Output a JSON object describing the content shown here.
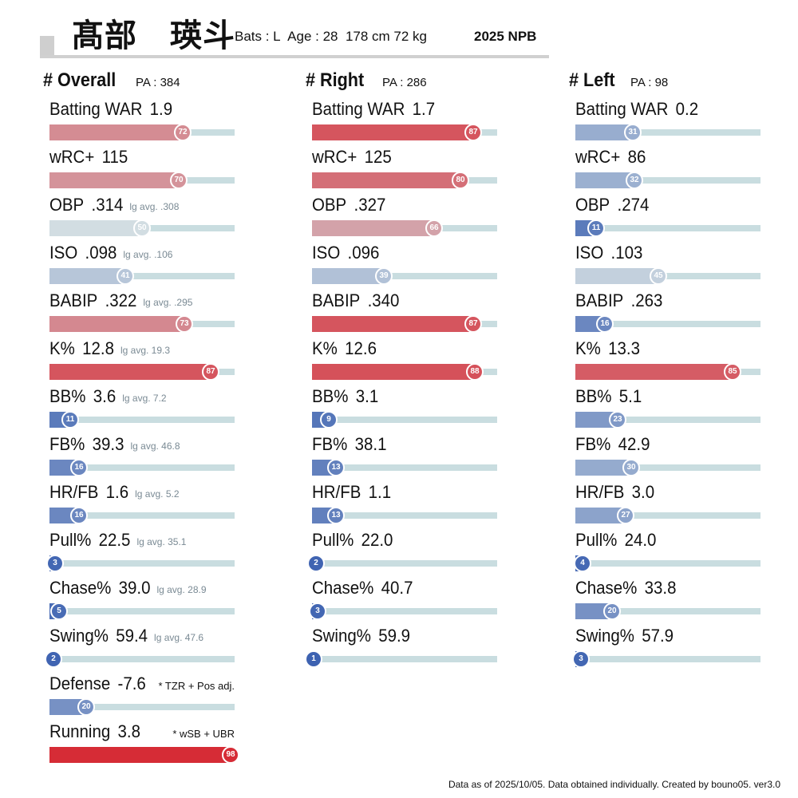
{
  "header": {
    "player_name": "髙部　瑛斗",
    "bats": "Bats : L",
    "age": "Age : 28",
    "height_weight": "178 cm 72 kg",
    "season": "2025 NPB"
  },
  "chart_data": {
    "type": "bar",
    "scale": "percentile",
    "xlim": [
      0,
      100
    ],
    "colors": {
      "track": "#c9dde0",
      "low": "#3a5fb0",
      "mid": "#d2dde2",
      "high": "#d6252f",
      "badge_border": "#ffffff"
    },
    "panels": [
      {
        "title": "# Overall",
        "pa": "PA : 384",
        "metrics": [
          {
            "name": "Batting WAR",
            "value": "1.9",
            "percentile": 72
          },
          {
            "name": "wRC+",
            "value": "115",
            "percentile": 70
          },
          {
            "name": "OBP",
            "value": ".314",
            "note": "lg avg. .308",
            "percentile": 50
          },
          {
            "name": "ISO",
            "value": ".098",
            "note": "lg avg. .106",
            "percentile": 41
          },
          {
            "name": "BABIP",
            "value": ".322",
            "note": "lg avg. .295",
            "percentile": 73
          },
          {
            "name": "K%",
            "value": "12.8",
            "note": "lg avg. 19.3",
            "percentile": 87
          },
          {
            "name": "BB%",
            "value": "3.6",
            "note": "lg avg. 7.2",
            "percentile": 11
          },
          {
            "name": "FB%",
            "value": "39.3",
            "note": "lg avg. 46.8",
            "percentile": 16
          },
          {
            "name": "HR/FB",
            "value": "1.6",
            "note": "lg avg. 5.2",
            "percentile": 16
          },
          {
            "name": "Pull%",
            "value": "22.5",
            "note": "lg avg. 35.1",
            "percentile": 3
          },
          {
            "name": "Chase%",
            "value": "39.0",
            "note": "lg avg. 28.9",
            "percentile": 5
          },
          {
            "name": "Swing%",
            "value": "59.4",
            "note": "lg avg. 47.6",
            "percentile": 2
          },
          {
            "name": "Defense",
            "value": "-7.6",
            "def_note": "* TZR + Pos adj.",
            "percentile": 20
          },
          {
            "name": "Running",
            "value": "3.8",
            "def_note": "* wSB + UBR",
            "percentile": 98
          }
        ]
      },
      {
        "title": "# Right",
        "pa": "PA : 286",
        "metrics": [
          {
            "name": "Batting WAR",
            "value": "1.7",
            "percentile": 87
          },
          {
            "name": "wRC+",
            "value": "125",
            "percentile": 80
          },
          {
            "name": "OBP",
            "value": ".327",
            "percentile": 66
          },
          {
            "name": "ISO",
            "value": ".096",
            "percentile": 39
          },
          {
            "name": "BABIP",
            "value": ".340",
            "percentile": 87
          },
          {
            "name": "K%",
            "value": "12.6",
            "percentile": 88
          },
          {
            "name": "BB%",
            "value": "3.1",
            "percentile": 9
          },
          {
            "name": "FB%",
            "value": "38.1",
            "percentile": 13
          },
          {
            "name": "HR/FB",
            "value": "1.1",
            "percentile": 13
          },
          {
            "name": "Pull%",
            "value": "22.0",
            "percentile": 2
          },
          {
            "name": "Chase%",
            "value": "40.7",
            "percentile": 3
          },
          {
            "name": "Swing%",
            "value": "59.9",
            "percentile": 1
          }
        ]
      },
      {
        "title": "# Left",
        "pa": "PA : 98",
        "metrics": [
          {
            "name": "Batting WAR",
            "value": "0.2",
            "percentile": 31
          },
          {
            "name": "wRC+",
            "value": "86",
            "percentile": 32
          },
          {
            "name": "OBP",
            "value": ".274",
            "percentile": 11
          },
          {
            "name": "ISO",
            "value": ".103",
            "percentile": 45
          },
          {
            "name": "BABIP",
            "value": ".263",
            "percentile": 16
          },
          {
            "name": "K%",
            "value": "13.3",
            "percentile": 85
          },
          {
            "name": "BB%",
            "value": "5.1",
            "percentile": 23
          },
          {
            "name": "FB%",
            "value": "42.9",
            "percentile": 30
          },
          {
            "name": "HR/FB",
            "value": "3.0",
            "percentile": 27
          },
          {
            "name": "Pull%",
            "value": "24.0",
            "percentile": 4
          },
          {
            "name": "Chase%",
            "value": "33.8",
            "percentile": 20
          },
          {
            "name": "Swing%",
            "value": "57.9",
            "percentile": 3
          }
        ]
      }
    ]
  },
  "footer": {
    "note": "Data as of 2025/10/05. Data obtained individually. Created by bouno05.  ver3.0"
  }
}
